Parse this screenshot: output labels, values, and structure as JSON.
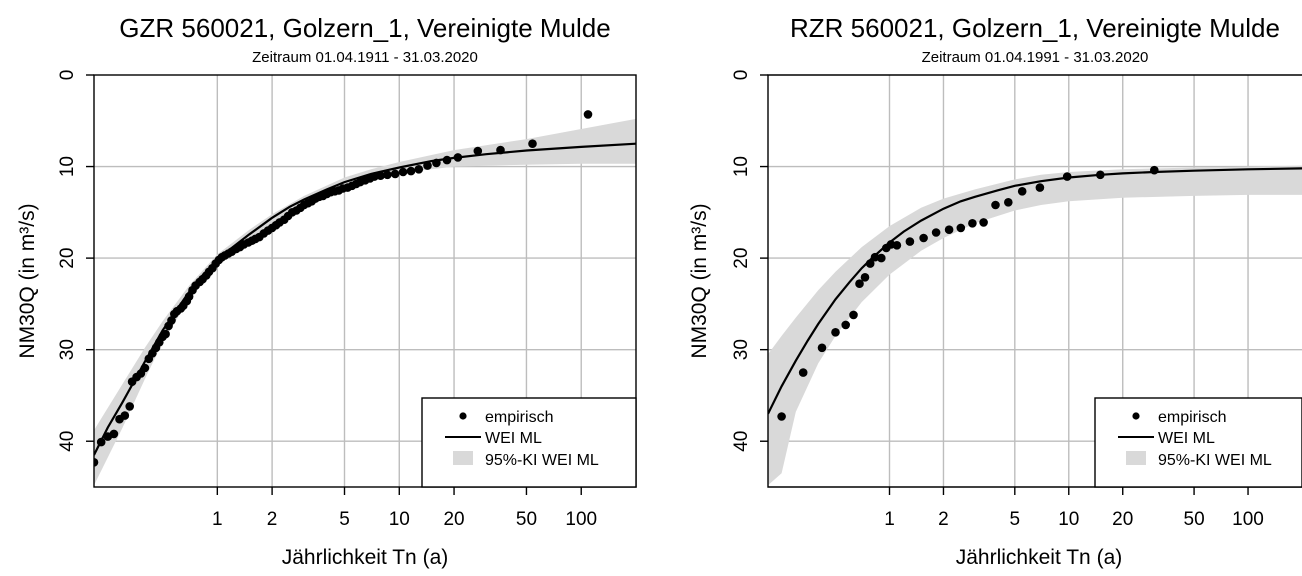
{
  "chart_data": [
    {
      "type": "scatter",
      "title": "GZR 560021, Golzern_1, Vereinigte Mulde",
      "subtitle": "Zeitraum 01.04.1911 - 31.03.2020",
      "xlabel": "Jährlichkeit Tn (a)",
      "ylabel": "NM30Q (in m³/s)",
      "x_scale": "log",
      "x_ticks": [
        1,
        2,
        5,
        10,
        20,
        50,
        100
      ],
      "x_tick_labels": [
        "1",
        "2",
        "5",
        "10",
        "20",
        "50",
        "100"
      ],
      "y_ticks": [
        0,
        10,
        20,
        30,
        40
      ],
      "y_tick_labels": [
        "0",
        "10",
        "20",
        "30",
        "40"
      ],
      "y_inverted": true,
      "xlim": [
        0.21,
        200
      ],
      "ylim": [
        45,
        0
      ],
      "grid": true,
      "legend_position": "bottom-right",
      "legend": [
        "empirisch",
        "WEI ML",
        "95%-KI WEI ML"
      ],
      "series": [
        {
          "name": "empirisch",
          "kind": "points",
          "x": [
            0.21,
            0.23,
            0.25,
            0.27,
            0.29,
            0.31,
            0.33,
            0.34,
            0.36,
            0.38,
            0.4,
            0.42,
            0.44,
            0.46,
            0.48,
            0.5,
            0.52,
            0.54,
            0.56,
            0.58,
            0.6,
            0.63,
            0.65,
            0.68,
            0.7,
            0.73,
            0.76,
            0.8,
            0.83,
            0.87,
            0.9,
            0.94,
            0.98,
            1.02,
            1.06,
            1.1,
            1.15,
            1.2,
            1.27,
            1.33,
            1.4,
            1.48,
            1.55,
            1.62,
            1.7,
            1.8,
            1.9,
            2.0,
            2.1,
            2.2,
            2.33,
            2.45,
            2.58,
            2.72,
            2.86,
            3.0,
            3.15,
            3.3,
            3.46,
            3.63,
            3.81,
            4.0,
            4.2,
            4.42,
            4.65,
            4.9,
            5.2,
            5.5,
            5.8,
            6.1,
            6.5,
            6.9,
            7.3,
            7.9,
            8.6,
            9.5,
            10.5,
            11.6,
            12.8,
            14.3,
            16.0,
            18.3,
            21.0,
            27.0,
            36.0,
            54.0,
            109.0
          ],
          "y": [
            42.3,
            40.1,
            39.5,
            39.2,
            37.6,
            37.2,
            36.2,
            33.5,
            33.0,
            32.6,
            32.0,
            31.0,
            30.4,
            29.8,
            29.2,
            28.6,
            28.3,
            27.4,
            26.8,
            26.1,
            25.8,
            25.5,
            25.2,
            24.7,
            24.2,
            23.5,
            23.0,
            22.6,
            22.3,
            21.9,
            21.5,
            21.1,
            20.6,
            20.2,
            19.9,
            19.7,
            19.5,
            19.3,
            19.0,
            18.8,
            18.5,
            18.3,
            18.1,
            17.9,
            17.7,
            17.3,
            17.0,
            16.7,
            16.4,
            16.1,
            15.8,
            15.4,
            15.0,
            14.8,
            14.5,
            14.2,
            14.0,
            13.8,
            13.5,
            13.3,
            13.2,
            13.0,
            12.8,
            12.7,
            12.6,
            12.4,
            12.3,
            12.1,
            11.9,
            11.7,
            11.5,
            11.3,
            11.1,
            11.0,
            10.9,
            10.8,
            10.6,
            10.5,
            10.3,
            9.9,
            9.6,
            9.3,
            9.0,
            8.3,
            8.2,
            7.5,
            4.3
          ]
        },
        {
          "name": "WEI ML",
          "kind": "line",
          "x": [
            0.21,
            0.25,
            0.3,
            0.35,
            0.4,
            0.5,
            0.6,
            0.7,
            0.8,
            1.0,
            1.2,
            1.5,
            2.0,
            2.5,
            3.0,
            4.0,
            5.0,
            7.0,
            10.0,
            15.0,
            20.0,
            30.0,
            50.0,
            100.0,
            200.0
          ],
          "y": [
            41.5,
            38.5,
            35.8,
            33.4,
            31.3,
            27.9,
            25.6,
            23.7,
            22.2,
            20.2,
            18.9,
            17.4,
            15.6,
            14.4,
            13.6,
            12.5,
            11.7,
            10.8,
            10.1,
            9.4,
            9.05,
            8.65,
            8.25,
            7.85,
            7.5
          ]
        },
        {
          "name": "95%-KI WEI ML",
          "kind": "band",
          "x": [
            0.21,
            0.3,
            0.4,
            0.5,
            0.7,
            1.0,
            1.5,
            2.0,
            3.0,
            5.0,
            7.0,
            10.0,
            20.0,
            50.0,
            100.0,
            200.0
          ],
          "lower": [
            38.8,
            33.8,
            29.8,
            26.9,
            23.0,
            19.6,
            16.9,
            15.2,
            13.2,
            11.2,
            10.3,
            9.5,
            8.2,
            7.0,
            5.9,
            4.8
          ],
          "upper": [
            44.8,
            38.6,
            33.2,
            29.2,
            24.5,
            20.9,
            18.0,
            16.2,
            14.1,
            12.2,
            11.3,
            10.7,
            10.0,
            9.8,
            9.7,
            9.7
          ]
        }
      ]
    },
    {
      "type": "scatter",
      "title": "RZR 560021, Golzern_1, Vereinigte Mulde",
      "subtitle": "Zeitraum 01.04.1991 - 31.03.2020",
      "xlabel": "Jährlichkeit Tn (a)",
      "ylabel": "NM30Q (in m³/s)",
      "x_scale": "log",
      "x_ticks": [
        1,
        2,
        5,
        10,
        20,
        50,
        100
      ],
      "x_tick_labels": [
        "1",
        "2",
        "5",
        "10",
        "20",
        "50",
        "100"
      ],
      "y_ticks": [
        0,
        10,
        20,
        30,
        40
      ],
      "y_tick_labels": [
        "0",
        "10",
        "20",
        "30",
        "40"
      ],
      "y_inverted": true,
      "xlim": [
        0.21,
        200
      ],
      "ylim": [
        45,
        0
      ],
      "grid": true,
      "legend_position": "bottom-right",
      "legend": [
        "empirisch",
        "WEI ML",
        "95%-KI WEI ML"
      ],
      "series": [
        {
          "name": "empirisch",
          "kind": "points",
          "x": [
            0.25,
            0.33,
            0.42,
            0.5,
            0.57,
            0.63,
            0.68,
            0.73,
            0.78,
            0.83,
            0.9,
            0.96,
            1.02,
            1.1,
            1.3,
            1.55,
            1.82,
            2.15,
            2.5,
            2.9,
            3.35,
            3.9,
            4.6,
            5.5,
            6.9,
            9.8,
            15.0,
            30.0
          ],
          "y": [
            37.3,
            32.5,
            29.8,
            28.1,
            27.3,
            26.2,
            22.8,
            22.1,
            20.6,
            19.9,
            20.0,
            18.9,
            18.5,
            18.6,
            18.2,
            17.8,
            17.2,
            16.9,
            16.7,
            16.2,
            16.1,
            14.2,
            13.9,
            12.7,
            12.3,
            11.1,
            10.9,
            10.4
          ]
        },
        {
          "name": "WEI ML",
          "kind": "line",
          "x": [
            0.21,
            0.25,
            0.3,
            0.35,
            0.4,
            0.5,
            0.6,
            0.7,
            0.8,
            1.0,
            1.2,
            1.5,
            2.0,
            2.5,
            3.0,
            4.0,
            5.0,
            7.0,
            10.0,
            15.0,
            20.0,
            30.0,
            50.0,
            100.0,
            200.0
          ],
          "y": [
            37.0,
            34.0,
            31.2,
            29.0,
            27.2,
            24.5,
            22.6,
            21.1,
            20.0,
            18.3,
            17.1,
            15.9,
            14.6,
            13.8,
            13.3,
            12.6,
            12.1,
            11.6,
            11.2,
            10.9,
            10.75,
            10.6,
            10.45,
            10.3,
            10.2
          ]
        },
        {
          "name": "95%-KI WEI ML",
          "kind": "band",
          "x": [
            0.21,
            0.25,
            0.3,
            0.4,
            0.5,
            0.7,
            1.0,
            1.5,
            2.0,
            3.0,
            5.0,
            7.0,
            10.0,
            20.0,
            50.0,
            100.0,
            200.0
          ],
          "lower": [
            30.5,
            28.5,
            26.5,
            23.5,
            21.5,
            18.8,
            16.5,
            14.5,
            13.5,
            12.5,
            11.4,
            10.9,
            10.6,
            10.3,
            10.1,
            10.0,
            9.9
          ],
          "upper": [
            44.8,
            43.5,
            36.8,
            31.5,
            28.5,
            24.8,
            21.8,
            19.2,
            17.8,
            16.2,
            14.8,
            14.2,
            13.8,
            13.4,
            13.2,
            13.1,
            13.1
          ]
        }
      ]
    }
  ]
}
